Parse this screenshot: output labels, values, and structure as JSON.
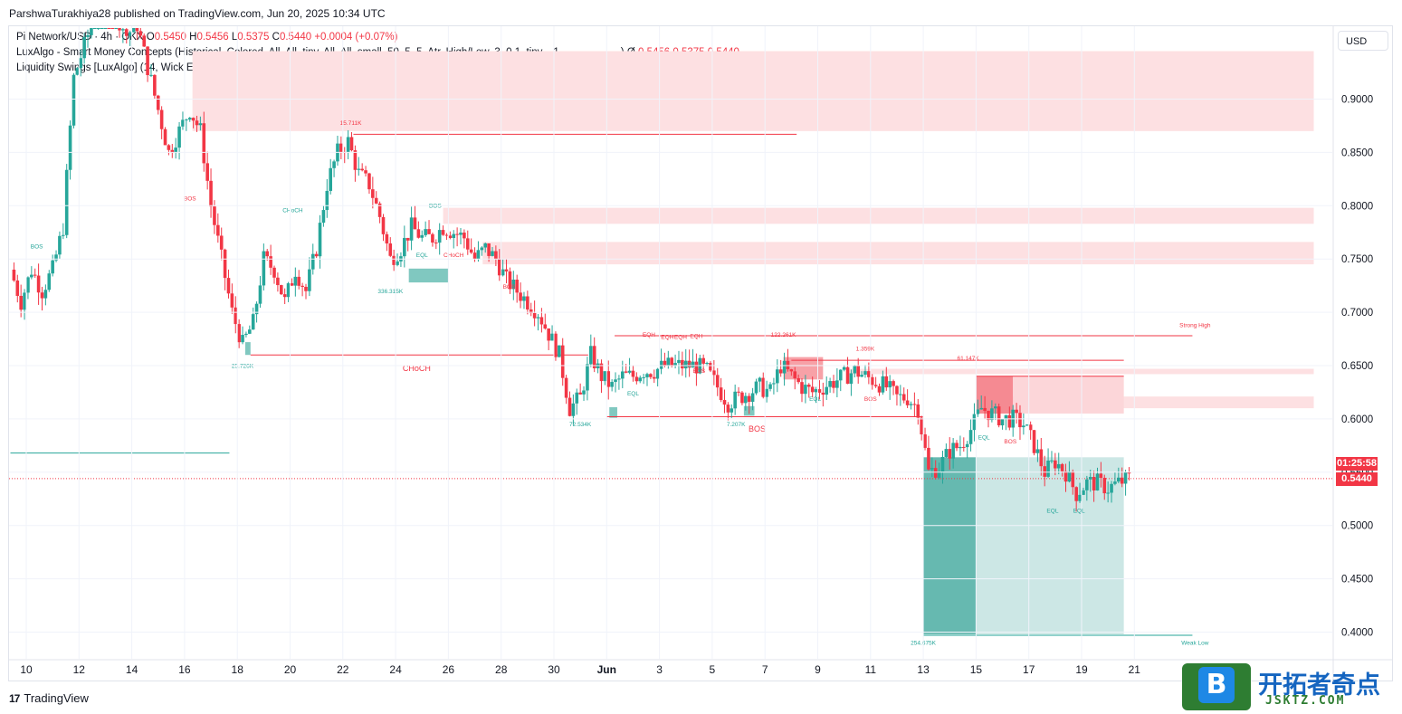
{
  "header": {
    "publisher_line": "ParshwaTurakhiya28 published on TradingView.com, Jun 20, 2025 10:34 UTC"
  },
  "legend": {
    "symbol": "Pi Network/USD · 4h · OKX",
    "o_label": "O",
    "o_val": "0.5450",
    "h_label": "H",
    "h_val": "0.5456",
    "l_label": "L",
    "l_val": "0.5375",
    "c_label": "C",
    "c_val": "0.5440",
    "change": "+0.0004 (+0.07%)",
    "ind1_name": "LuxAlgo - Smart Money Concepts (Historical, Colored, All, All, tiny, All, All, small, 50, 5, 5, Atr, High/Low, 3, 0.1, tiny, , 1, ──, ──, ──)",
    "ind1_symbol": "Ø",
    "ind1_values": "0.5456  0.5375  0.5440",
    "ind2_name": "Liquidity Swings [LuxAlgo] (14, Wick Extremity, 1, Count, 0, Tiny)"
  },
  "price_scale": {
    "currency": "USD",
    "countdown": "01:25:58",
    "last_price": "0.5440"
  },
  "footer": {
    "brand": "TradingView",
    "brand_mark": "17"
  },
  "watermark": {
    "letter": "B",
    "title": "开拓者奇点",
    "subtitle": "JSKTZ.COM"
  },
  "colors": {
    "up": "#26a69a",
    "down": "#f23645",
    "supply": "#fde0e2",
    "demand": "#b2dfdb"
  },
  "chart_data": {
    "type": "candlestick",
    "ylim": [
      0.385,
      0.965
    ],
    "yticks": [
      {
        "v": 0.9,
        "label": "0.9000"
      },
      {
        "v": 0.85,
        "label": "0.8500"
      },
      {
        "v": 0.8,
        "label": "0.8000"
      },
      {
        "v": 0.75,
        "label": "0.7500"
      },
      {
        "v": 0.7,
        "label": "0.7000"
      },
      {
        "v": 0.65,
        "label": "0.6500"
      },
      {
        "v": 0.6,
        "label": "0.6000"
      },
      {
        "v": 0.55,
        "label": "0.5500"
      },
      {
        "v": 0.5,
        "label": "0.5000"
      },
      {
        "v": 0.45,
        "label": "0.4500"
      },
      {
        "v": 0.4,
        "label": "0.4000"
      }
    ],
    "xticks": [
      {
        "d": 0,
        "label": "10"
      },
      {
        "d": 2,
        "label": "12"
      },
      {
        "d": 4,
        "label": "14"
      },
      {
        "d": 6,
        "label": "16"
      },
      {
        "d": 8,
        "label": "18"
      },
      {
        "d": 10,
        "label": "20"
      },
      {
        "d": 12,
        "label": "22"
      },
      {
        "d": 14,
        "label": "24"
      },
      {
        "d": 16,
        "label": "26"
      },
      {
        "d": 18,
        "label": "28"
      },
      {
        "d": 20,
        "label": "30"
      },
      {
        "d": 22,
        "label": "Jun"
      },
      {
        "d": 24,
        "label": "3"
      },
      {
        "d": 26,
        "label": "5"
      },
      {
        "d": 28,
        "label": "7"
      },
      {
        "d": 30,
        "label": "9"
      },
      {
        "d": 32,
        "label": "11"
      },
      {
        "d": 34,
        "label": "13"
      },
      {
        "d": 36,
        "label": "15"
      },
      {
        "d": 38,
        "label": "17"
      },
      {
        "d": 40,
        "label": "19"
      },
      {
        "d": 42,
        "label": "21"
      }
    ],
    "closes": [
      [
        -0.6,
        0.74
      ],
      [
        -0.2,
        0.71
      ],
      [
        0.2,
        0.74
      ],
      [
        0.6,
        0.72
      ],
      [
        1.0,
        0.74
      ],
      [
        1.4,
        0.78
      ],
      [
        1.8,
        0.92
      ],
      [
        2.2,
        0.95
      ],
      [
        2.6,
        0.98
      ],
      [
        3.0,
        1.0
      ],
      [
        3.4,
        0.98
      ],
      [
        3.8,
        0.96
      ],
      [
        4.2,
        0.97
      ],
      [
        4.6,
        0.93
      ],
      [
        5.0,
        0.89
      ],
      [
        5.4,
        0.85
      ],
      [
        5.8,
        0.87
      ],
      [
        6.2,
        0.89
      ],
      [
        6.6,
        0.87
      ],
      [
        7.0,
        0.8
      ],
      [
        7.4,
        0.75
      ],
      [
        7.8,
        0.7
      ],
      [
        8.2,
        0.67
      ],
      [
        8.6,
        0.69
      ],
      [
        9.0,
        0.75
      ],
      [
        9.4,
        0.74
      ],
      [
        9.8,
        0.71
      ],
      [
        10.2,
        0.74
      ],
      [
        10.6,
        0.72
      ],
      [
        11.0,
        0.76
      ],
      [
        11.4,
        0.82
      ],
      [
        11.8,
        0.85
      ],
      [
        12.2,
        0.86
      ],
      [
        12.6,
        0.83
      ],
      [
        13.0,
        0.82
      ],
      [
        13.4,
        0.79
      ],
      [
        13.8,
        0.75
      ],
      [
        14.2,
        0.76
      ],
      [
        14.6,
        0.78
      ],
      [
        15.0,
        0.77
      ],
      [
        15.4,
        0.77
      ],
      [
        15.8,
        0.78
      ],
      [
        16.2,
        0.775
      ],
      [
        16.6,
        0.77
      ],
      [
        17.0,
        0.75
      ],
      [
        17.4,
        0.76
      ],
      [
        17.8,
        0.75
      ],
      [
        18.2,
        0.73
      ],
      [
        18.6,
        0.72
      ],
      [
        19.0,
        0.71
      ],
      [
        19.4,
        0.7
      ],
      [
        19.8,
        0.68
      ],
      [
        20.2,
        0.66
      ],
      [
        20.6,
        0.61
      ],
      [
        21.0,
        0.62
      ],
      [
        21.4,
        0.66
      ],
      [
        21.8,
        0.64
      ],
      [
        22.2,
        0.63
      ],
      [
        22.6,
        0.64
      ],
      [
        23.0,
        0.64
      ],
      [
        23.4,
        0.645
      ],
      [
        23.8,
        0.645
      ],
      [
        24.2,
        0.65
      ],
      [
        24.6,
        0.65
      ],
      [
        25.0,
        0.65
      ],
      [
        25.4,
        0.65
      ],
      [
        25.8,
        0.645
      ],
      [
        26.2,
        0.63
      ],
      [
        26.6,
        0.615
      ],
      [
        27.0,
        0.62
      ],
      [
        27.4,
        0.625
      ],
      [
        27.8,
        0.63
      ],
      [
        28.2,
        0.625
      ],
      [
        28.6,
        0.65
      ],
      [
        29.0,
        0.64
      ],
      [
        29.4,
        0.63
      ],
      [
        29.8,
        0.625
      ],
      [
        30.2,
        0.63
      ],
      [
        30.6,
        0.635
      ],
      [
        31.0,
        0.64
      ],
      [
        31.4,
        0.645
      ],
      [
        31.8,
        0.64
      ],
      [
        32.2,
        0.635
      ],
      [
        32.6,
        0.63
      ],
      [
        33.0,
        0.62
      ],
      [
        33.4,
        0.62
      ],
      [
        33.8,
        0.61
      ],
      [
        34.2,
        0.55
      ],
      [
        34.6,
        0.555
      ],
      [
        35.0,
        0.57
      ],
      [
        35.4,
        0.575
      ],
      [
        35.8,
        0.59
      ],
      [
        36.2,
        0.61
      ],
      [
        36.6,
        0.605
      ],
      [
        37.0,
        0.6
      ],
      [
        37.4,
        0.6
      ],
      [
        37.8,
        0.595
      ],
      [
        38.2,
        0.575
      ],
      [
        38.6,
        0.55
      ],
      [
        39.0,
        0.56
      ],
      [
        39.4,
        0.55
      ],
      [
        39.8,
        0.53
      ],
      [
        40.2,
        0.54
      ],
      [
        40.6,
        0.54
      ],
      [
        41.0,
        0.535
      ],
      [
        41.4,
        0.54
      ],
      [
        41.8,
        0.544
      ]
    ],
    "last": 0.544,
    "zones_supply": [
      {
        "x1": 6.3,
        "x2": 48.8,
        "y1": 0.87,
        "y2": 0.945
      },
      {
        "x1": 15.8,
        "x2": 48.8,
        "y1": 0.783,
        "y2": 0.798
      },
      {
        "x1": 17.3,
        "x2": 48.8,
        "y1": 0.745,
        "y2": 0.766
      },
      {
        "x1": 31.2,
        "x2": 48.8,
        "y1": 0.642,
        "y2": 0.647
      },
      {
        "x1": 36.0,
        "x2": 48.8,
        "y1": 0.61,
        "y2": 0.621
      }
    ],
    "zones_ob": [
      {
        "x1": 28.7,
        "x2": 30.2,
        "y1": 0.637,
        "y2": 0.658,
        "c": "#f7a1a7"
      },
      {
        "x1": 36.0,
        "x2": 37.4,
        "y1": 0.605,
        "y2": 0.64,
        "c": "#f58a92"
      },
      {
        "x1": 37.4,
        "x2": 41.6,
        "y1": 0.605,
        "y2": 0.64,
        "c": "#fcd6d9"
      },
      {
        "x1": 14.5,
        "x2": 16.0,
        "y1": 0.728,
        "y2": 0.741,
        "c": "#80c8c0"
      },
      {
        "x1": 22.1,
        "x2": 22.4,
        "y1": 0.601,
        "y2": 0.611,
        "c": "#80c8c0"
      },
      {
        "x1": 27.2,
        "x2": 27.6,
        "y1": 0.603,
        "y2": 0.612,
        "c": "#80c8c0"
      },
      {
        "x1": 8.3,
        "x2": 8.5,
        "y1": 0.66,
        "y2": 0.672,
        "c": "#80c8c0"
      }
    ],
    "zones_big": [
      {
        "x1": 34.0,
        "x2": 36.0,
        "y1": 0.398,
        "y2": 0.564,
        "c": "#66b9b0"
      },
      {
        "x1": 36.0,
        "x2": 41.6,
        "y1": 0.398,
        "y2": 0.564,
        "c": "#cce7e5"
      }
    ],
    "lines": [
      {
        "x1": 12.4,
        "x2": 29.2,
        "y": 0.867,
        "c": "#f23645",
        "w": 1
      },
      {
        "x1": 22.3,
        "x2": 44.2,
        "y": 0.678,
        "c": "#f23645",
        "w": 1
      },
      {
        "x1": 29.0,
        "x2": 41.6,
        "y": 0.655,
        "c": "#f23645",
        "w": 1
      },
      {
        "x1": 36.0,
        "x2": 41.6,
        "y": 0.64,
        "c": "#f23645",
        "w": 1
      },
      {
        "x1": 8.5,
        "x2": 21.3,
        "y": 0.66,
        "c": "#f23645",
        "w": 1
      },
      {
        "x1": 22.0,
        "x2": 34.0,
        "y": 0.602,
        "c": "#f23645",
        "w": 1
      },
      {
        "x1": 34.0,
        "x2": 44.2,
        "y": 0.397,
        "c": "#26a69a",
        "w": 1
      },
      {
        "x1": -0.6,
        "x2": 7.7,
        "y": 0.568,
        "c": "#26a69a",
        "w": 1
      }
    ],
    "labels": [
      {
        "x": 12.3,
        "y": 0.876,
        "t": "15.711K",
        "c": "#f23645"
      },
      {
        "x": 10.1,
        "y": 0.794,
        "t": "CHoCH",
        "c": "#26a69a"
      },
      {
        "x": 15.5,
        "y": 0.798,
        "t": "BOS",
        "c": "#26a69a"
      },
      {
        "x": 6.2,
        "y": 0.805,
        "t": "BOS",
        "c": "#f23645"
      },
      {
        "x": 0.4,
        "y": 0.76,
        "t": "BOS",
        "c": "#26a69a"
      },
      {
        "x": 15.0,
        "y": 0.752,
        "t": "EQL",
        "c": "#26a69a"
      },
      {
        "x": 16.2,
        "y": 0.752,
        "t": "CHoCH",
        "c": "#f23645"
      },
      {
        "x": 18.3,
        "y": 0.722,
        "t": "BOS",
        "c": "#f23645"
      },
      {
        "x": 13.8,
        "y": 0.718,
        "t": "336.315K",
        "c": "#26a69a"
      },
      {
        "x": 8.2,
        "y": 0.648,
        "t": "25.726K",
        "c": "#26a69a"
      },
      {
        "x": 14.8,
        "y": 0.645,
        "t": "CHoCH",
        "c": "#f23645",
        "s": 9
      },
      {
        "x": 23.6,
        "y": 0.677,
        "t": "EQH",
        "c": "#f23645"
      },
      {
        "x": 24.3,
        "y": 0.675,
        "t": "EQH",
        "c": "#f23645"
      },
      {
        "x": 24.8,
        "y": 0.675,
        "t": "EQH",
        "c": "#f23645"
      },
      {
        "x": 25.4,
        "y": 0.676,
        "t": "EQH",
        "c": "#f23645"
      },
      {
        "x": 25.1,
        "y": 0.649,
        "t": "EQL",
        "c": "#26a69a"
      },
      {
        "x": 25.5,
        "y": 0.643,
        "t": "BOS",
        "c": "#f23645"
      },
      {
        "x": 23.0,
        "y": 0.622,
        "t": "EQL",
        "c": "#26a69a"
      },
      {
        "x": 28.7,
        "y": 0.677,
        "t": "122.261K",
        "c": "#f23645"
      },
      {
        "x": 31.8,
        "y": 0.664,
        "t": "1.359K",
        "c": "#f23645"
      },
      {
        "x": 35.7,
        "y": 0.655,
        "t": "61.147K",
        "c": "#f23645"
      },
      {
        "x": 29.9,
        "y": 0.617,
        "t": "EQL",
        "c": "#26a69a"
      },
      {
        "x": 32.0,
        "y": 0.617,
        "t": "BOS",
        "c": "#f23645"
      },
      {
        "x": 21.0,
        "y": 0.593,
        "t": "72.534K",
        "c": "#26a69a"
      },
      {
        "x": 26.9,
        "y": 0.593,
        "t": "7.207K",
        "c": "#26a69a"
      },
      {
        "x": 27.7,
        "y": 0.588,
        "t": "BOS",
        "c": "#f23645",
        "s": 9
      },
      {
        "x": 36.3,
        "y": 0.581,
        "t": "EQL",
        "c": "#26a69a"
      },
      {
        "x": 37.3,
        "y": 0.577,
        "t": "BOS",
        "c": "#f23645"
      },
      {
        "x": 38.9,
        "y": 0.512,
        "t": "EQL",
        "c": "#26a69a"
      },
      {
        "x": 39.9,
        "y": 0.512,
        "t": "EQL",
        "c": "#26a69a"
      },
      {
        "x": 44.3,
        "y": 0.686,
        "t": "Strong High",
        "c": "#f23645"
      },
      {
        "x": 44.3,
        "y": 0.388,
        "t": "Weak Low",
        "c": "#26a69a"
      },
      {
        "x": 34.0,
        "y": 0.388,
        "t": "254.675K",
        "c": "#26a69a"
      }
    ]
  }
}
